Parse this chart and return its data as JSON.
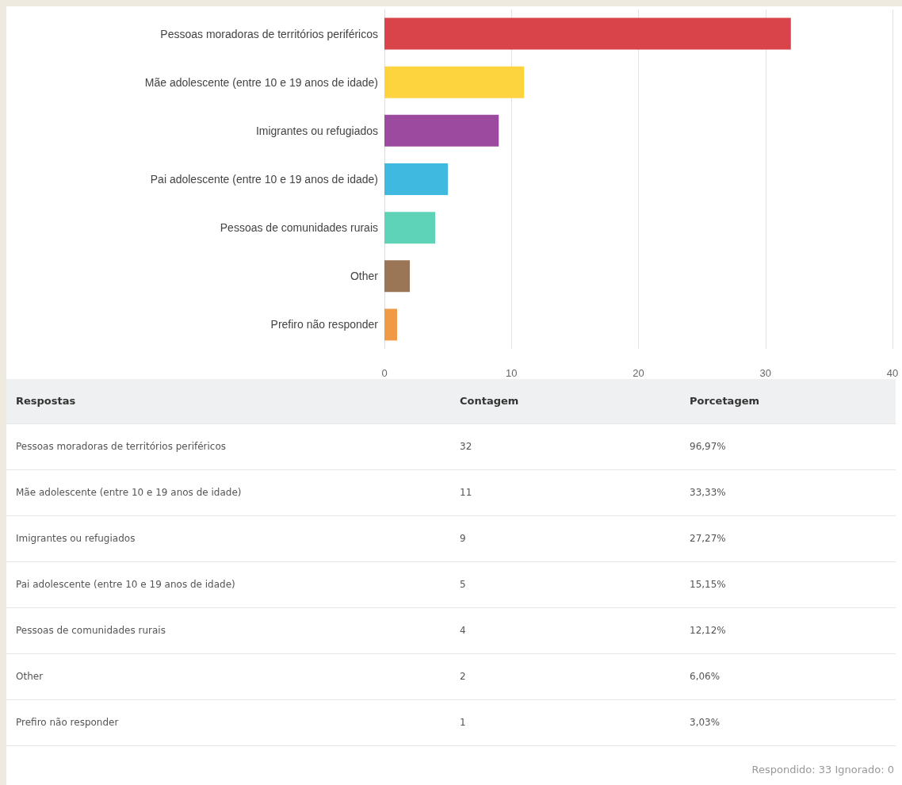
{
  "chart_data": {
    "type": "bar",
    "orientation": "horizontal",
    "categories": [
      "Pessoas moradoras de territórios periféricos",
      "Mãe adolescente (entre 10 e 19 anos de idade)",
      "Imigrantes ou refugiados",
      "Pai adolescente (entre 10 e 19 anos de idade)",
      "Pessoas de comunidades rurais",
      "Other",
      "Prefiro não responder"
    ],
    "values": [
      32,
      11,
      9,
      5,
      4,
      2,
      1
    ],
    "colors": [
      "#d9434a",
      "#fdd33e",
      "#9b4a9f",
      "#3fb9e0",
      "#5fd3b8",
      "#9a7657",
      "#f09a45"
    ],
    "xlim": [
      0,
      40
    ],
    "xticks": [
      0,
      10,
      20,
      30,
      40
    ],
    "grid": "x",
    "annotations": [
      "Respostas",
      "Contagem",
      "Porcetagem",
      "32",
      "96,97%",
      "11",
      "33,33%",
      "9",
      "27,27%",
      "5",
      "15,15%",
      "4",
      "12,12%",
      "2",
      "6,06%",
      "1",
      "3,03%",
      "Respondido: 33  Ignorado: 0"
    ]
  }
}
